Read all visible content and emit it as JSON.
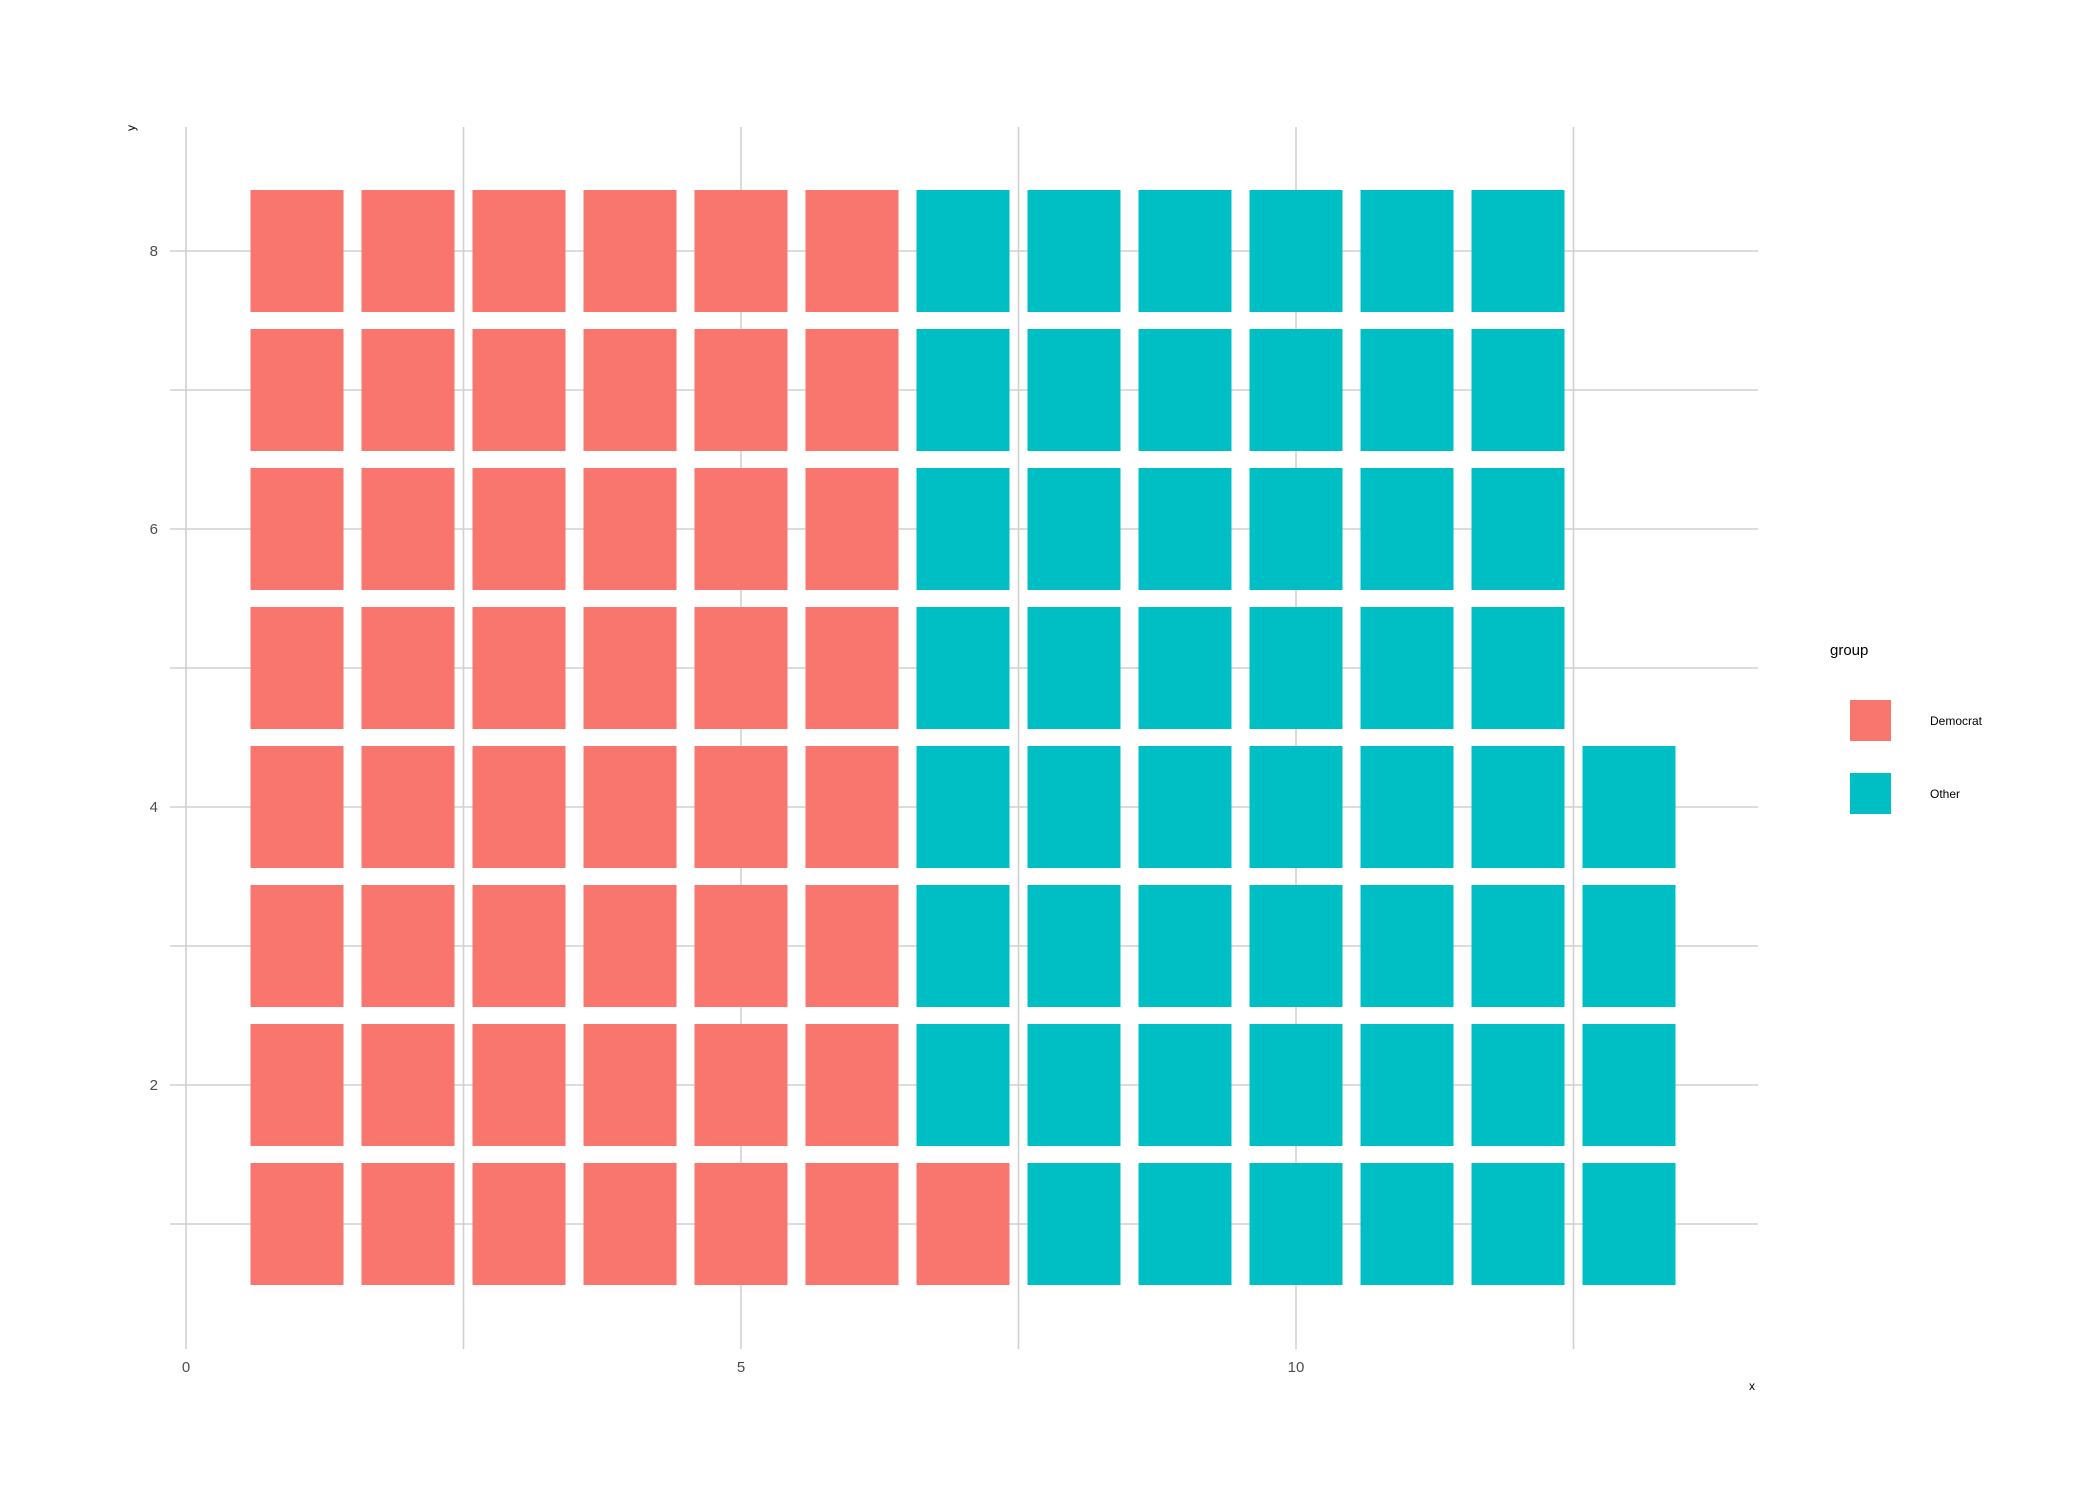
{
  "chart_data": {
    "type": "heatmap",
    "subtype": "waffle",
    "title": "",
    "xlabel": "x",
    "ylabel": "y",
    "xlim": [
      0,
      14
    ],
    "ylim": [
      0.5,
      8.5
    ],
    "x_ticks": [
      0,
      5,
      10
    ],
    "x_tick_labels": [
      "0",
      "5",
      "10"
    ],
    "y_ticks": [
      2,
      4,
      6,
      8
    ],
    "y_tick_labels": [
      "2",
      "4",
      "6",
      "8"
    ],
    "grid": true,
    "legend": {
      "title": "group",
      "position": "right",
      "entries": [
        {
          "label": "Democrat",
          "color": "#F8766D"
        },
        {
          "label": "Other",
          "color": "#00BFC4"
        }
      ]
    },
    "columns": [
      {
        "x": 1,
        "groups": [
          "Democrat",
          "Democrat",
          "Democrat",
          "Democrat",
          "Democrat",
          "Democrat",
          "Democrat",
          "Democrat"
        ]
      },
      {
        "x": 2,
        "groups": [
          "Democrat",
          "Democrat",
          "Democrat",
          "Democrat",
          "Democrat",
          "Democrat",
          "Democrat",
          "Democrat"
        ]
      },
      {
        "x": 3,
        "groups": [
          "Democrat",
          "Democrat",
          "Democrat",
          "Democrat",
          "Democrat",
          "Democrat",
          "Democrat",
          "Democrat"
        ]
      },
      {
        "x": 4,
        "groups": [
          "Democrat",
          "Democrat",
          "Democrat",
          "Democrat",
          "Democrat",
          "Democrat",
          "Democrat",
          "Democrat"
        ]
      },
      {
        "x": 5,
        "groups": [
          "Democrat",
          "Democrat",
          "Democrat",
          "Democrat",
          "Democrat",
          "Democrat",
          "Democrat",
          "Democrat"
        ]
      },
      {
        "x": 6,
        "groups": [
          "Democrat",
          "Democrat",
          "Democrat",
          "Democrat",
          "Democrat",
          "Democrat",
          "Democrat",
          "Democrat"
        ]
      },
      {
        "x": 7,
        "groups": [
          "Democrat",
          "Other",
          "Other",
          "Other",
          "Other",
          "Other",
          "Other",
          "Other"
        ]
      },
      {
        "x": 8,
        "groups": [
          "Other",
          "Other",
          "Other",
          "Other",
          "Other",
          "Other",
          "Other",
          "Other"
        ]
      },
      {
        "x": 9,
        "groups": [
          "Other",
          "Other",
          "Other",
          "Other",
          "Other",
          "Other",
          "Other",
          "Other"
        ]
      },
      {
        "x": 10,
        "groups": [
          "Other",
          "Other",
          "Other",
          "Other",
          "Other",
          "Other",
          "Other",
          "Other"
        ]
      },
      {
        "x": 11,
        "groups": [
          "Other",
          "Other",
          "Other",
          "Other",
          "Other",
          "Other",
          "Other",
          "Other"
        ]
      },
      {
        "x": 12,
        "groups": [
          "Other",
          "Other",
          "Other",
          "Other",
          "Other",
          "Other",
          "Other",
          "Other"
        ]
      },
      {
        "x": 13,
        "groups": [
          "Other",
          "Other",
          "Other",
          "Other"
        ]
      }
    ]
  }
}
